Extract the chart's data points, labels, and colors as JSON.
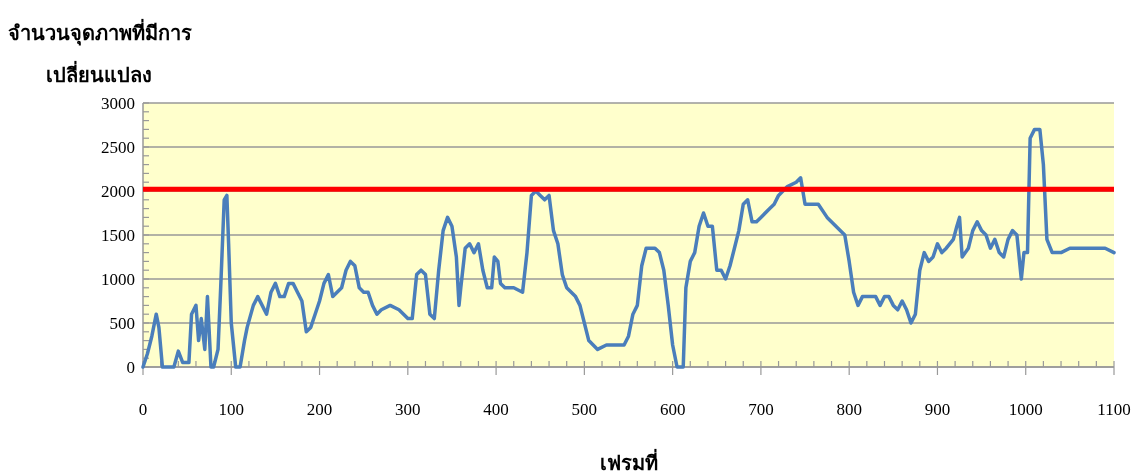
{
  "chart_data": {
    "type": "line",
    "xlabel": "เฟรมที่",
    "ylabel": "จำนวนจุดภาพที่มีการ เปลี่ยนแปลง",
    "xlim": [
      0,
      1100
    ],
    "ylim": [
      0,
      3000
    ],
    "xticks": [
      0,
      100,
      200,
      300,
      400,
      500,
      600,
      700,
      800,
      900,
      1000,
      1100
    ],
    "yticks": [
      0,
      500,
      1000,
      1500,
      2000,
      2500,
      3000
    ],
    "grid": "y",
    "line_style": "solid",
    "ref_lines": [
      {
        "axis": "y",
        "value": 2020,
        "label": null,
        "color": "#ff0000"
      }
    ],
    "series": [
      {
        "color": "#4a7ebb",
        "x": [
          0,
          5,
          10,
          15,
          18,
          22,
          35,
          40,
          45,
          52,
          55,
          60,
          63,
          66,
          70,
          73,
          77,
          80,
          85,
          88,
          92,
          95,
          97,
          100,
          105,
          110,
          115,
          118,
          125,
          130,
          135,
          140,
          145,
          150,
          155,
          160,
          165,
          170,
          175,
          180,
          185,
          190,
          195,
          200,
          205,
          210,
          215,
          225,
          230,
          235,
          240,
          245,
          250,
          255,
          260,
          265,
          270,
          280,
          290,
          300,
          305,
          310,
          315,
          320,
          325,
          330,
          335,
          340,
          345,
          350,
          355,
          358,
          360,
          365,
          370,
          375,
          380,
          385,
          390,
          395,
          398,
          402,
          405,
          410,
          420,
          430,
          435,
          440,
          445,
          450,
          455,
          460,
          465,
          470,
          475,
          480,
          490,
          495,
          500,
          505,
          515,
          525,
          530,
          545,
          550,
          555,
          560,
          565,
          570,
          580,
          585,
          590,
          595,
          600,
          605,
          612,
          615,
          620,
          625,
          630,
          635,
          640,
          645,
          650,
          655,
          660,
          665,
          670,
          675,
          680,
          685,
          690,
          695,
          700,
          710,
          715,
          720,
          730,
          740,
          745,
          750,
          755,
          765,
          775,
          785,
          795,
          800,
          805,
          810,
          815,
          830,
          835,
          840,
          845,
          850,
          855,
          860,
          865,
          870,
          875,
          880,
          885,
          890,
          895,
          900,
          905,
          910,
          918,
          922,
          925,
          928,
          935,
          940,
          945,
          950,
          955,
          960,
          965,
          970,
          975,
          980,
          985,
          990,
          995,
          998,
          1002,
          1005,
          1010,
          1016,
          1020,
          1024,
          1030,
          1040,
          1050,
          1070,
          1090,
          1100
        ],
        "values": [
          0,
          150,
          350,
          600,
          450,
          0,
          0,
          180,
          50,
          50,
          600,
          700,
          300,
          550,
          200,
          800,
          0,
          0,
          200,
          900,
          1900,
          1950,
          1400,
          500,
          0,
          0,
          300,
          450,
          700,
          800,
          700,
          600,
          850,
          950,
          800,
          800,
          950,
          950,
          850,
          750,
          400,
          450,
          600,
          750,
          950,
          1050,
          800,
          900,
          1100,
          1200,
          1150,
          900,
          850,
          850,
          700,
          600,
          650,
          700,
          650,
          550,
          550,
          1050,
          1100,
          1050,
          600,
          550,
          1100,
          1550,
          1700,
          1600,
          1250,
          700,
          900,
          1350,
          1400,
          1300,
          1400,
          1100,
          900,
          900,
          1250,
          1200,
          950,
          900,
          900,
          850,
          1300,
          1950,
          2000,
          1950,
          1900,
          1950,
          1550,
          1400,
          1050,
          900,
          800,
          700,
          500,
          300,
          200,
          250,
          250,
          250,
          350,
          600,
          700,
          1150,
          1350,
          1350,
          1300,
          1100,
          700,
          250,
          0,
          0,
          900,
          1200,
          1300,
          1600,
          1750,
          1600,
          1600,
          1100,
          1100,
          1000,
          1150,
          1350,
          1550,
          1850,
          1900,
          1650,
          1650,
          1700,
          1800,
          1850,
          1950,
          2050,
          2100,
          2150,
          1850,
          1850,
          1850,
          1700,
          1600,
          1500,
          1200,
          850,
          700,
          800,
          800,
          700,
          800,
          800,
          700,
          650,
          750,
          650,
          500,
          600,
          1100,
          1300,
          1200,
          1250,
          1400,
          1300,
          1350,
          1450,
          1600,
          1700,
          1250,
          1350,
          1550,
          1650,
          1550,
          1500,
          1350,
          1450,
          1300,
          1250,
          1450,
          1550,
          1500,
          1000,
          1300,
          1300,
          2600,
          2700,
          2700,
          2300,
          1450,
          1300,
          1300,
          1350,
          1350,
          1350,
          1300
        ]
      }
    ]
  }
}
